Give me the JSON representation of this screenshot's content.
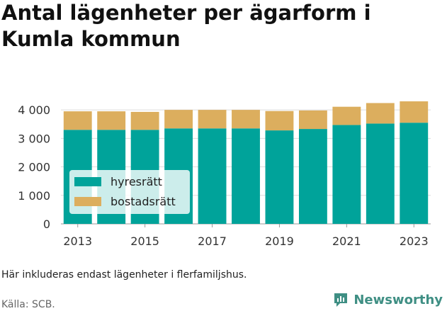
{
  "title": "Antal lägenheter per ägarform i Kumla kommun",
  "note": "Här inkluderas endast lägenheter i flerfamiljshus.",
  "source": "Källa: SCB.",
  "brand": "Newsworthy",
  "colors": {
    "hyresratt": "#00a39a",
    "bostadsratt": "#dcae5e",
    "grid": "#dcdcdc",
    "brand": "#3f8f84"
  },
  "chart_data": {
    "type": "bar",
    "stacked": true,
    "categories": [
      "2013",
      "2014",
      "2015",
      "2016",
      "2017",
      "2018",
      "2019",
      "2020",
      "2021",
      "2022",
      "2023"
    ],
    "series": [
      {
        "name": "hyresrätt",
        "color": "#00a39a",
        "values": [
          3300,
          3300,
          3300,
          3350,
          3350,
          3350,
          3280,
          3330,
          3470,
          3520,
          3550
        ]
      },
      {
        "name": "bostadsrätt",
        "color": "#dcae5e",
        "values": [
          650,
          650,
          630,
          650,
          650,
          650,
          680,
          650,
          640,
          720,
          750
        ]
      }
    ],
    "xtick_labels": [
      "2013",
      "2015",
      "2017",
      "2019",
      "2021",
      "2023"
    ],
    "ytick_labels": [
      "0",
      "1 000",
      "2 000",
      "3 000",
      "4 000"
    ],
    "yticks": [
      0,
      1000,
      2000,
      3000,
      4000
    ],
    "ylim": [
      0,
      4500
    ],
    "grid": true,
    "legend_position": "bottom-left"
  }
}
